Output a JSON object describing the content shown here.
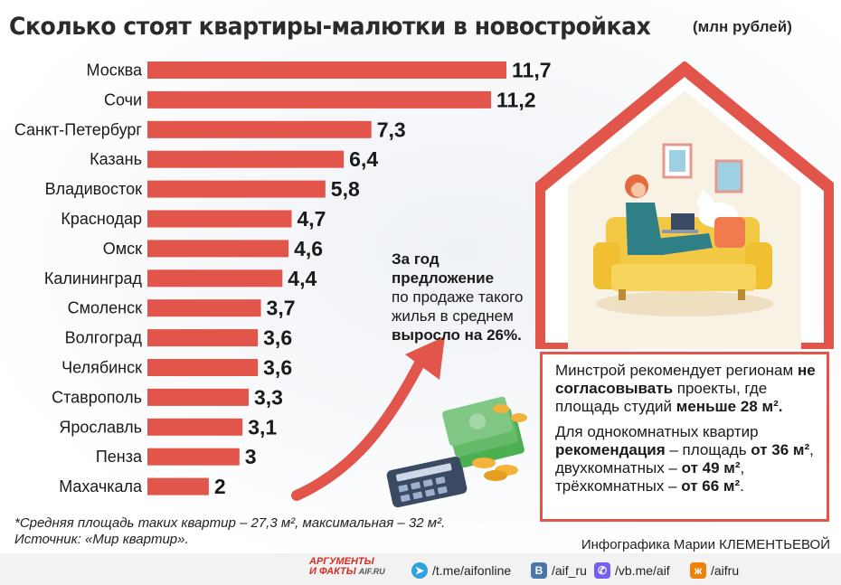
{
  "title": "Сколько стоят квартиры-малютки в новостройках",
  "unit": "(млн рублей)",
  "chart_data": {
    "type": "bar",
    "orientation": "horizontal",
    "categories": [
      "Москва",
      "Сочи",
      "Санкт-Петербург",
      "Казань",
      "Владивосток",
      "Краснодар",
      "Омск",
      "Калининград",
      "Смоленск",
      "Волгоград",
      "Челябинск",
      "Ставрополь",
      "Ярославль",
      "Пенза",
      "Махачкала"
    ],
    "values": [
      11.7,
      11.2,
      7.3,
      6.4,
      5.8,
      4.7,
      4.6,
      4.4,
      3.7,
      3.6,
      3.6,
      3.3,
      3.1,
      3,
      2
    ],
    "value_labels": [
      "11,7",
      "11,2",
      "7,3",
      "6,4",
      "5,8",
      "4,7",
      "4,6",
      "4,4",
      "3,7",
      "3,6",
      "3,6",
      "3,3",
      "3,1",
      "3",
      "2"
    ],
    "bar_color": "#e2554a",
    "grid": false
  },
  "growth": {
    "line1": "За год",
    "line2": "предложение",
    "line3": "по продаже такого",
    "line4": "жилья в среднем",
    "line5": "выросло на 26%."
  },
  "infobox": {
    "p1_a": "Минстрой рекомендует регионам ",
    "p1_b": "не согласовывать",
    "p1_c": " проекты, где площадь студий ",
    "p1_d": "меньше 28 м².",
    "p2_a": "Для однокомнатных квартир ",
    "p2_b": "рекомендация",
    "p2_c": " – площадь ",
    "p2_d": "от 36 м²",
    "p2_e": ", двухкомнатных – ",
    "p2_f": "от 49 м²",
    "p2_g": ", трёхкомнатных – ",
    "p2_h": "от 66 м²",
    "p2_i": "."
  },
  "notes": {
    "line1": "*Средняя площадь таких квартир – 27,3 м², максимальная – 32 м².",
    "line2": "Источник: «Мир квартир»."
  },
  "credit": "Инфографика Марии КЛЕМЕНТЬЕВОЙ",
  "footer": {
    "brand_top": "АРГУМЕНТЫ",
    "brand_bottom": "И ФАКТЫ",
    "brand_site": "AIF.RU",
    "telegram": "/t.me/aifonline",
    "vk": "/aif_ru",
    "viber": "/vb.me/aif",
    "ok": "/aifru"
  },
  "colors": {
    "accent": "#e2554a",
    "background": "#ffffff"
  }
}
